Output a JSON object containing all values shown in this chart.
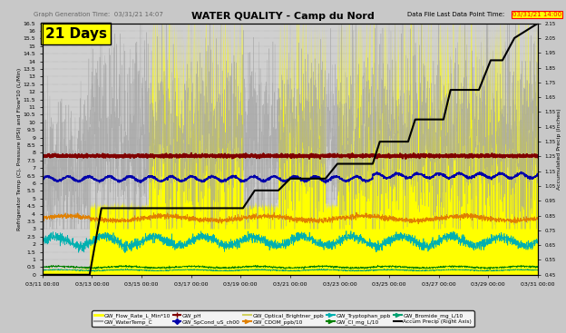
{
  "title": "WATER QUALITY - Camp du Nord",
  "subtitle_left": "Graph Generation Time:  03/31/21 14:07",
  "subtitle_right": "Data File Last Data Point Time:",
  "subtitle_right_highlight": "03/31/21 14:00",
  "annotation": "21 Days",
  "left_ylabel": "Refrigerator Temp (C), Pressure (PSI) and Flow*10 (L/Min)",
  "right_ylabel": "Accumulated Precip (Inches)",
  "xtick_labels": [
    "03/11 00:00",
    "03/13 00:00",
    "03/15 00:00",
    "03/17 00:00",
    "03/19 00:00",
    "03/21 00:00",
    "03/23 00:00",
    "03/25 00:00",
    "03/27 00:00",
    "03/29 00:00",
    "03/31 00:00"
  ],
  "yticks_left": [
    0,
    0.5,
    1.0,
    1.5,
    2.0,
    2.5,
    3.0,
    3.5,
    4.0,
    4.5,
    5.0,
    5.5,
    6.0,
    6.5,
    7.0,
    7.5,
    8.0,
    8.5,
    9.0,
    9.5,
    10.0,
    10.5,
    11.0,
    11.5,
    12.0,
    12.5,
    13.0,
    13.5,
    14.0,
    14.5,
    15.0,
    15.5,
    16.0,
    16.5
  ],
  "yticks_right": [
    0.45,
    0.55,
    0.65,
    0.75,
    0.85,
    0.95,
    1.05,
    1.15,
    1.25,
    1.35,
    1.45,
    1.55,
    1.65,
    1.75,
    1.85,
    1.95,
    2.05,
    2.15
  ],
  "bg_color": "#c8c8c8",
  "plot_bg_color": "#d0d0d0",
  "series": {
    "flow": {
      "color": "#ffff00",
      "lw": 0.4,
      "label": "GW_Flow_Rate_L_Min*10"
    },
    "watertemp": {
      "color": "#a0a0a0",
      "lw": 0.3,
      "label": "GW_WaterTemp_C"
    },
    "ph": {
      "color": "#800000",
      "lw": 1.5,
      "label": "GW_pH"
    },
    "spcond": {
      "color": "#0000aa",
      "lw": 1.0,
      "label": "GW_SpCond_uS_ch00"
    },
    "optical": {
      "color": "#d0d060",
      "lw": 0.4,
      "label": "GW_Optical_Brightner_ppb"
    },
    "cdom": {
      "color": "#e08000",
      "lw": 0.8,
      "label": "GW_CDOM_ppb/10"
    },
    "tryptophan": {
      "color": "#00b0b0",
      "lw": 0.5,
      "label": "GW_Tryptophan_ppb"
    },
    "cl": {
      "color": "#008000",
      "lw": 0.5,
      "label": "GW_Cl_mg_L/10"
    },
    "bromide": {
      "color": "#00a070",
      "lw": 0.5,
      "label": "GW_Bromide_mg_L/10"
    },
    "precip": {
      "color": "#000000",
      "lw": 1.5,
      "label": "Accum Precip (Right Axis)"
    }
  }
}
